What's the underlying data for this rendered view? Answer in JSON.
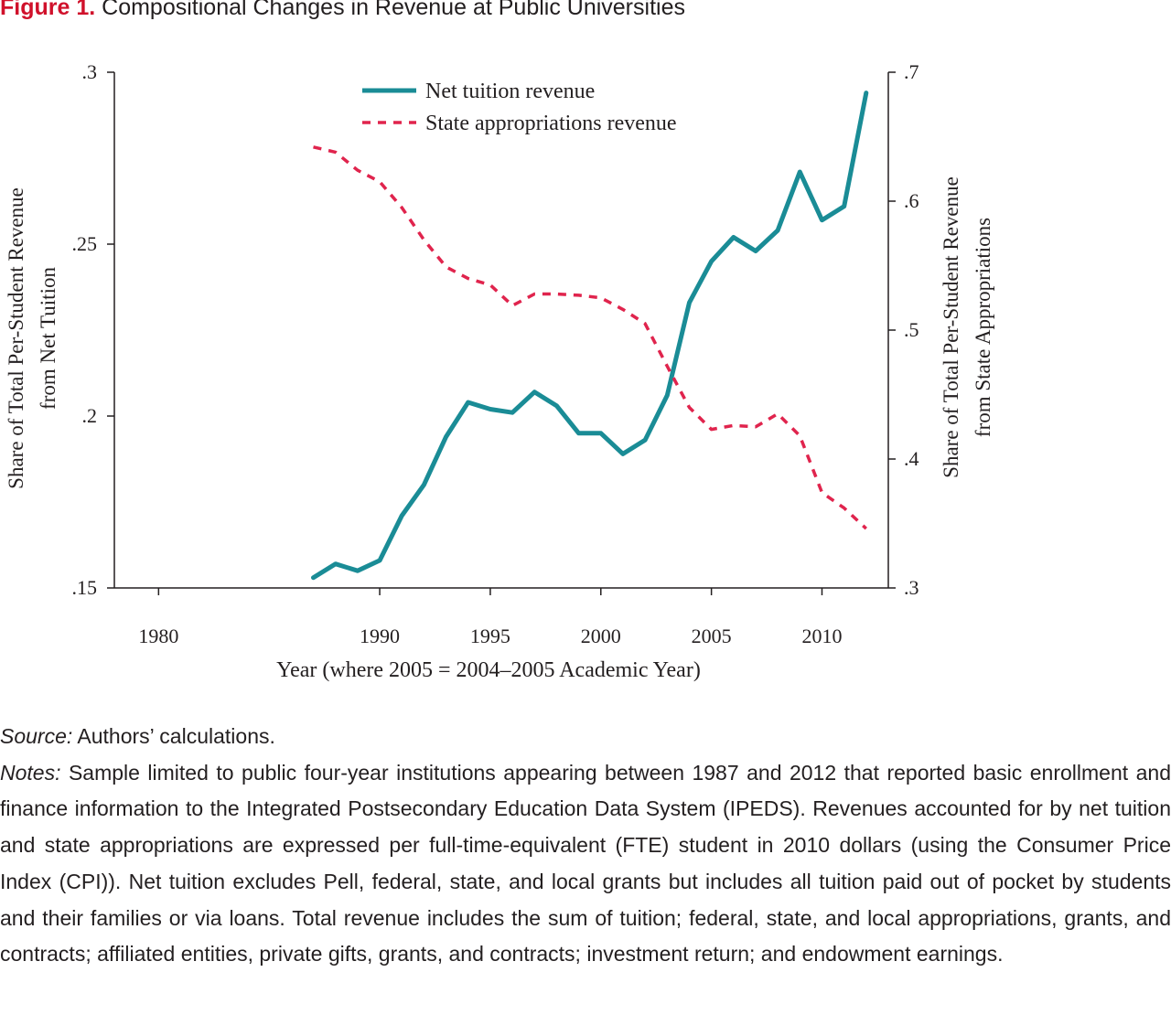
{
  "figure": {
    "label": "Figure 1.",
    "title": "Compositional Changes in Revenue at Public Universities"
  },
  "chart_data": {
    "type": "line",
    "xlabel": "Year (where 2005 = 2004–2005 Academic Year)",
    "ylabel_left": [
      "Share of Total Per-Student Revenue",
      "from Net Tuition"
    ],
    "ylabel_right": [
      "Share of Total Per-Student Revenue",
      "from State Appropriations"
    ],
    "xlim": [
      1978,
      2013
    ],
    "ylim_left": [
      0.15,
      0.3
    ],
    "ylim_right": [
      0.3,
      0.7
    ],
    "x_ticks": [
      "1980",
      "1990",
      "1995",
      "2000",
      "2005",
      "2010"
    ],
    "x_tick_values": [
      1980,
      1990,
      1995,
      2000,
      2005,
      2010
    ],
    "y_ticks_left": [
      ".15",
      ".2",
      ".25",
      ".3"
    ],
    "y_tick_values_left": [
      0.15,
      0.2,
      0.25,
      0.3
    ],
    "y_ticks_right": [
      ".3",
      ".4",
      ".5",
      ".6",
      ".7"
    ],
    "y_tick_values_right": [
      0.3,
      0.4,
      0.5,
      0.6,
      0.7
    ],
    "legend_position": "top-center",
    "grid": false,
    "x": [
      1987,
      1988,
      1989,
      1990,
      1991,
      1992,
      1993,
      1994,
      1995,
      1996,
      1997,
      1998,
      1999,
      2000,
      2001,
      2002,
      2003,
      2004,
      2005,
      2006,
      2007,
      2008,
      2009,
      2010,
      2011,
      2012
    ],
    "series": [
      {
        "name": "Net tuition revenue",
        "axis": "left",
        "style": "solid",
        "color": "#1a8c96",
        "values": [
          0.153,
          0.157,
          0.155,
          0.158,
          0.171,
          0.18,
          0.194,
          0.204,
          0.202,
          0.201,
          0.207,
          0.203,
          0.195,
          0.195,
          0.189,
          0.193,
          0.206,
          0.233,
          0.245,
          0.252,
          0.248,
          0.254,
          0.271,
          0.257,
          0.261,
          0.294
        ]
      },
      {
        "name": "State appropriations revenue",
        "axis": "right",
        "style": "dashed",
        "color": "#e0244d",
        "values": [
          0.642,
          0.638,
          0.624,
          0.615,
          0.595,
          0.57,
          0.549,
          0.54,
          0.535,
          0.519,
          0.528,
          0.528,
          0.527,
          0.525,
          0.516,
          0.505,
          0.472,
          0.44,
          0.423,
          0.426,
          0.425,
          0.435,
          0.418,
          0.374,
          0.362,
          0.346
        ]
      }
    ]
  },
  "caption": {
    "source_label": "Source:",
    "source_text": "Authors’ calculations.",
    "notes_label": "Notes:",
    "notes_text": "Sample limited to public four-year institutions appearing between 1987 and 2012 that reported basic enrollment and finance information to the Integrated Postsecondary Education Data System (IPEDS). Revenues accounted for by net tuition and state appropriations are expressed per full-time-equivalent (FTE) student in 2010 dollars (using the Consumer Price Index (CPI)). Net tuition excludes Pell, federal, state, and local grants but includes all tuition paid out of pocket by students and their families or via loans. Total revenue includes the sum of tuition; federal, state, and local appropriations, grants, and contracts; affiliated entities, private gifts, grants, and contracts; investment return; and endowment earnings."
  }
}
